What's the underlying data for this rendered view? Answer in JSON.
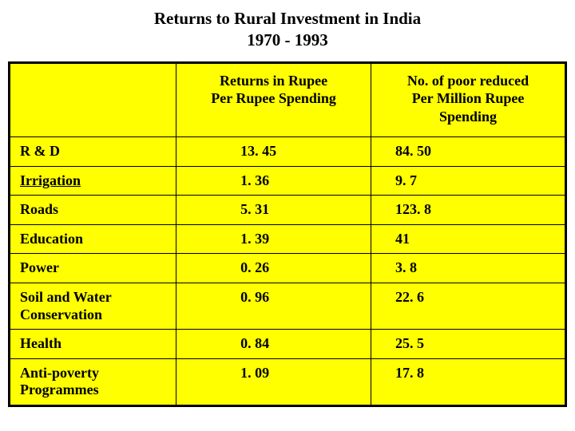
{
  "title": {
    "line1": "Returns to Rural Investment in India",
    "line2": "1970 - 1993"
  },
  "table": {
    "type": "table",
    "background_color": "#ffff00",
    "border_color": "#000000",
    "text_color": "#000000",
    "font_family": "Times New Roman",
    "header_fontsize": 18,
    "cell_fontsize": 18,
    "columns": [
      {
        "label": "",
        "align": "left",
        "width": "30%"
      },
      {
        "label_line1": "Returns in Rupee",
        "label_line2": "Per Rupee Spending",
        "align": "center",
        "width": "35%"
      },
      {
        "label_line1": "No. of poor reduced",
        "label_line2": "Per Million Rupee",
        "label_line3": "Spending",
        "align": "center",
        "width": "35%"
      }
    ],
    "rows": [
      {
        "category": "R & D",
        "returns": "13. 45",
        "poor_reduced": "84. 50",
        "underlined": false
      },
      {
        "category": "Irrigation",
        "returns": "1. 36",
        "poor_reduced": "9. 7",
        "underlined": true
      },
      {
        "category": "Roads",
        "returns": "5. 31",
        "poor_reduced": "123. 8",
        "underlined": false
      },
      {
        "category": "Education",
        "returns": "1. 39",
        "poor_reduced": "41",
        "underlined": false
      },
      {
        "category": "Power",
        "returns": "0. 26",
        "poor_reduced": "3. 8",
        "underlined": false
      },
      {
        "category": "Soil and Water Conservation",
        "returns": "0. 96",
        "poor_reduced": "22. 6",
        "underlined": false
      },
      {
        "category": "Health",
        "returns": "0. 84",
        "poor_reduced": "25. 5",
        "underlined": false
      },
      {
        "category": "Anti-poverty Programmes",
        "returns": "1. 09",
        "poor_reduced": "17. 8",
        "underlined": false
      }
    ]
  }
}
